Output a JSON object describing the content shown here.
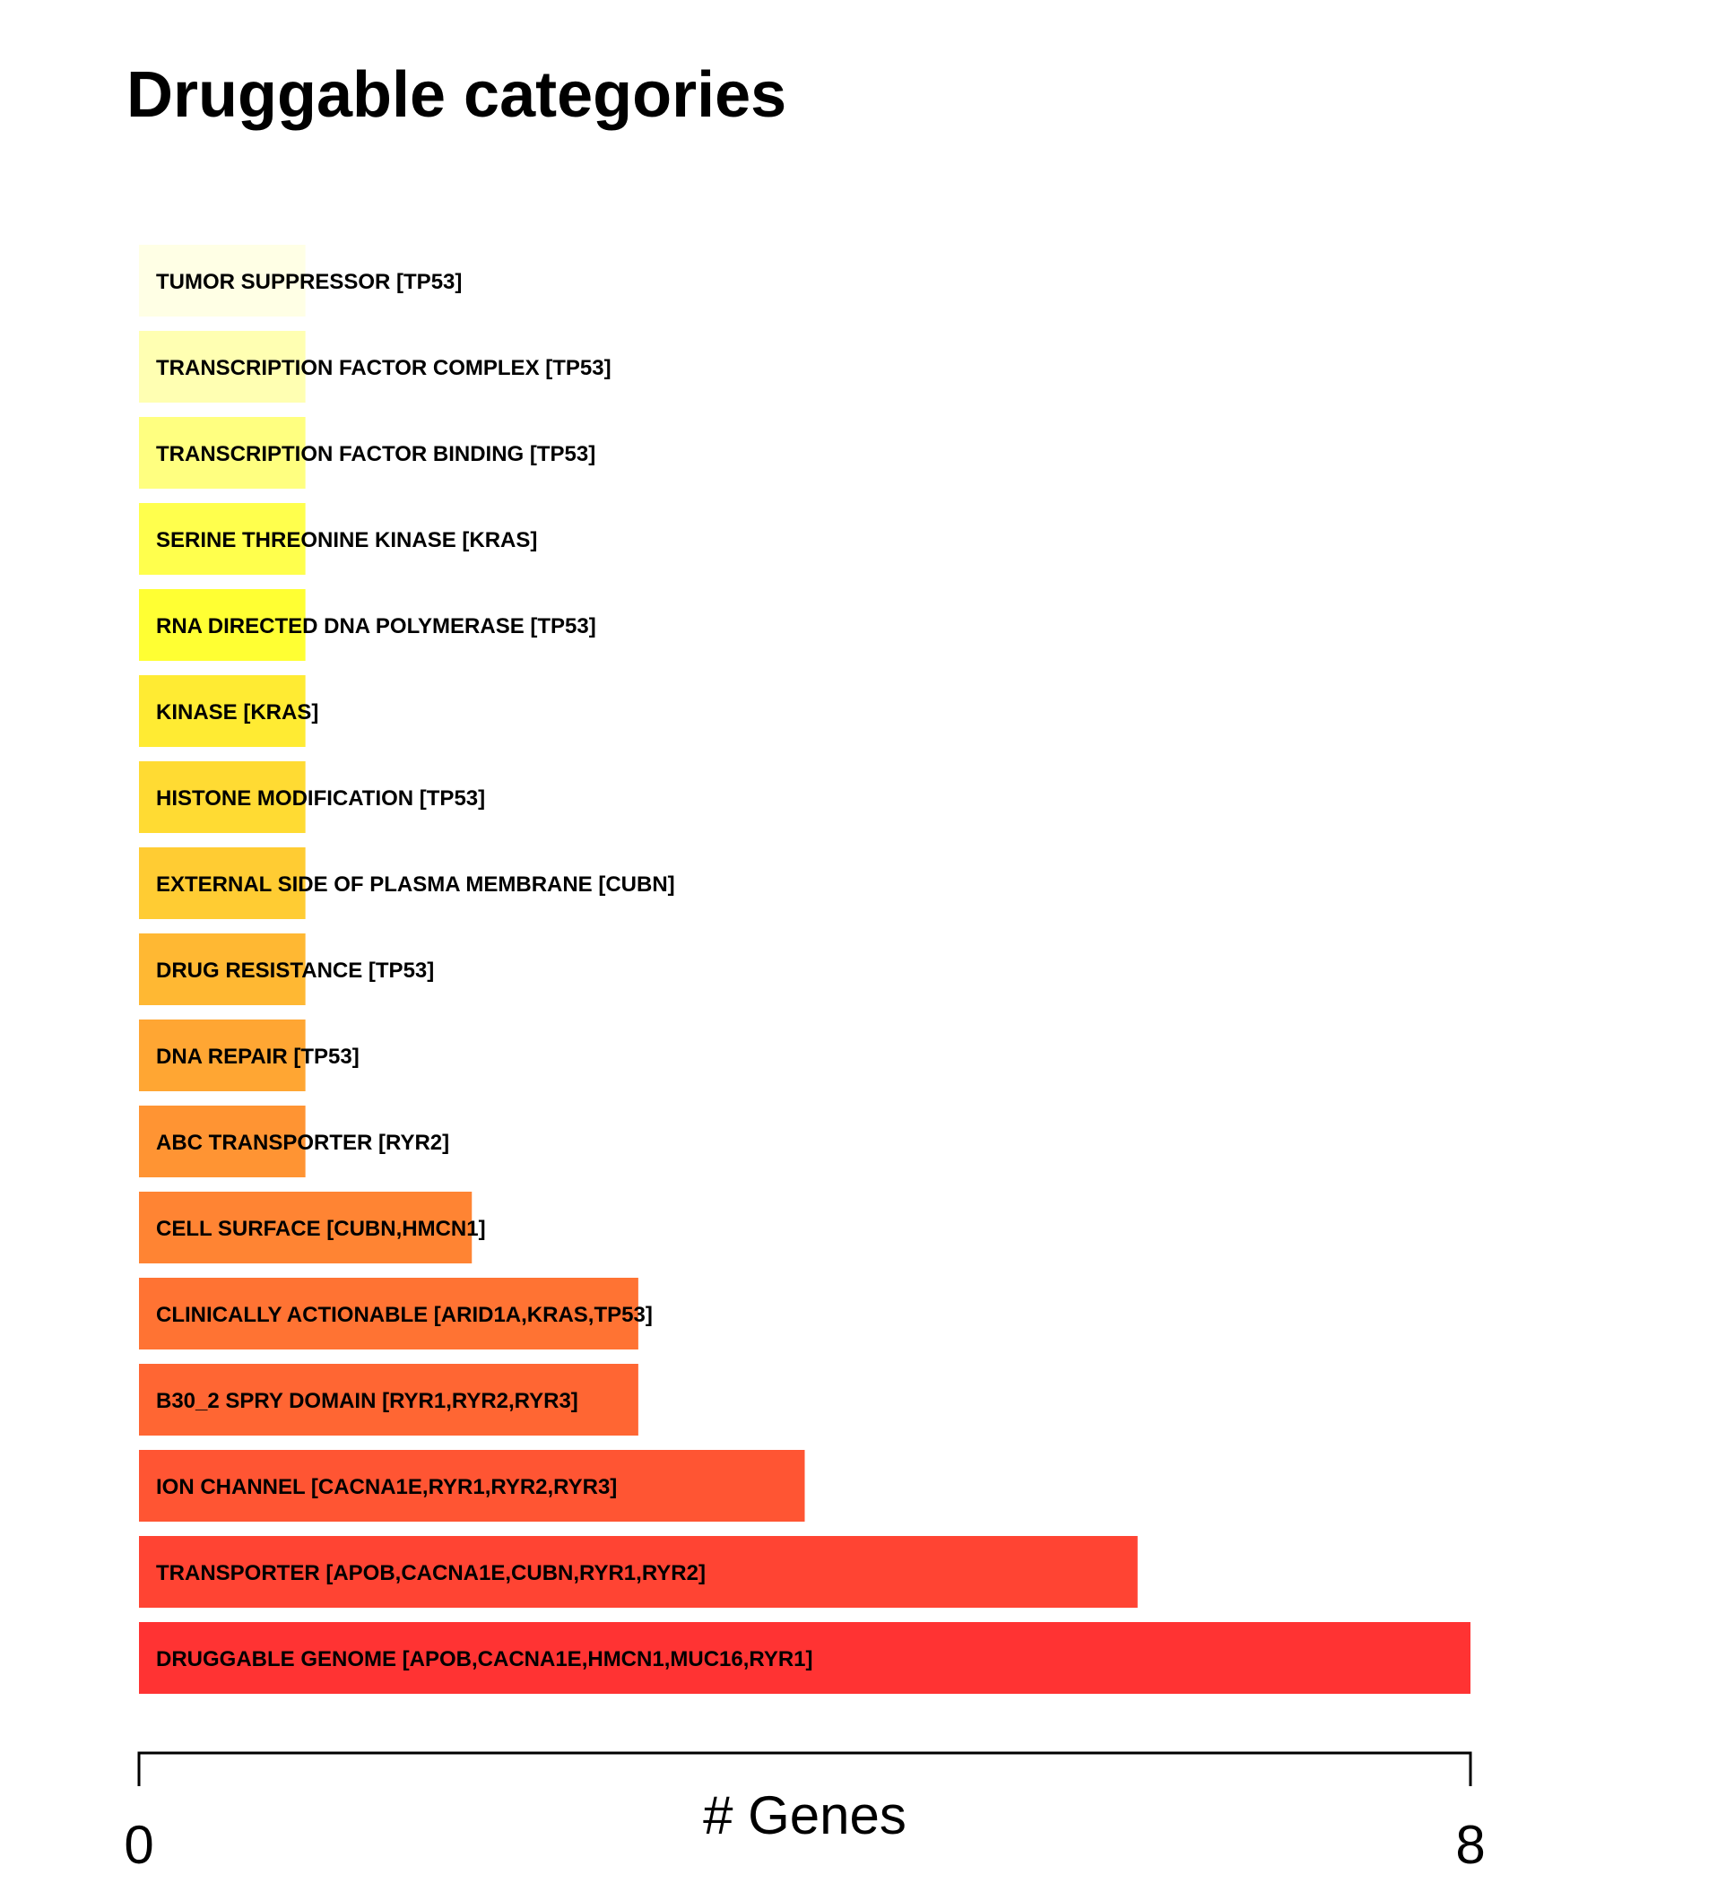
{
  "chart_data": {
    "type": "bar",
    "orientation": "horizontal",
    "title": "Druggable categories",
    "xlabel": "# Genes",
    "xlim": [
      0,
      8
    ],
    "x_ticks": [
      "0",
      "8"
    ],
    "grid": false,
    "bars": [
      {
        "label": "TUMOR SUPPRESSOR [TP53]",
        "value": 1,
        "color": "#FFFFE5"
      },
      {
        "label": "TRANSCRIPTION FACTOR COMPLEX [TP53]",
        "value": 1,
        "color": "#FFFFB2"
      },
      {
        "label": "TRANSCRIPTION FACTOR BINDING [TP53]",
        "value": 1,
        "color": "#FFFF80"
      },
      {
        "label": "SERINE THREONINE KINASE [KRAS]",
        "value": 1,
        "color": "#FFFF4D"
      },
      {
        "label": "RNA DIRECTED DNA POLYMERASE [TP53]",
        "value": 1,
        "color": "#FFFF33"
      },
      {
        "label": "KINASE [KRAS]",
        "value": 1,
        "color": "#FFEB33"
      },
      {
        "label": "HISTONE MODIFICATION [TP53]",
        "value": 1,
        "color": "#FFDB33"
      },
      {
        "label": "EXTERNAL SIDE OF PLASMA MEMBRANE [CUBN]",
        "value": 1,
        "color": "#FFCC33"
      },
      {
        "label": "DRUG RESISTANCE [TP53]",
        "value": 1,
        "color": "#FFB833"
      },
      {
        "label": "DNA REPAIR [TP53]",
        "value": 1,
        "color": "#FFA633"
      },
      {
        "label": "ABC TRANSPORTER [RYR2]",
        "value": 1,
        "color": "#FF9433"
      },
      {
        "label": "CELL SURFACE [CUBN,HMCN1]",
        "value": 2,
        "color": "#FF8433"
      },
      {
        "label": "CLINICALLY ACTIONABLE [ARID1A,KRAS,TP53]",
        "value": 3,
        "color": "#FF7333"
      },
      {
        "label": "B30_2 SPRY DOMAIN [RYR1,RYR2,RYR3]",
        "value": 3,
        "color": "#FF6633"
      },
      {
        "label": "ION CHANNEL [CACNA1E,RYR1,RYR2,RYR3]",
        "value": 4,
        "color": "#FF5533"
      },
      {
        "label": "TRANSPORTER [APOB,CACNA1E,CUBN,RYR1,RYR2]",
        "value": 6,
        "color": "#FF4433"
      },
      {
        "label": "DRUGGABLE GENOME [APOB,CACNA1E,HMCN1,MUC16,RYR1]",
        "value": 8,
        "color": "#FF3333"
      }
    ]
  }
}
